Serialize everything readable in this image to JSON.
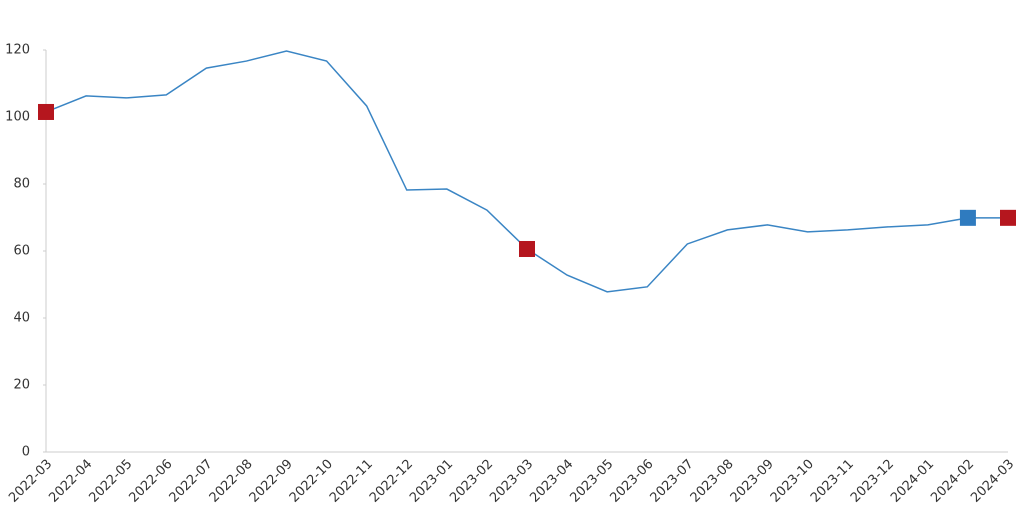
{
  "chart_data": {
    "type": "line",
    "categories": [
      "2022-03",
      "2022-04",
      "2022-05",
      "2022-06",
      "2022-07",
      "2022-08",
      "2022-09",
      "2022-10",
      "2022-11",
      "2022-12",
      "2023-01",
      "2023-02",
      "2023-03",
      "2023-04",
      "2023-05",
      "2023-06",
      "2023-07",
      "2023-08",
      "2023-09",
      "2023-10",
      "2023-11",
      "2023-12",
      "2024-01",
      "2024-02",
      "2024-03"
    ],
    "series": [
      {
        "mode": "line",
        "color": "#3a85c4",
        "values": [
          101.5,
          106.3,
          105.7,
          106.6,
          114.6,
          116.7,
          119.7,
          116.7,
          103.3,
          78.2,
          78.5,
          72.2,
          60.6,
          52.8,
          47.8,
          49.3,
          62.1,
          66.3,
          67.8,
          65.7,
          66.3,
          67.2,
          67.8,
          69.9,
          69.9
        ]
      },
      {
        "mode": "square",
        "color": "#b5161e",
        "values": [
          101.5,
          null,
          null,
          null,
          null,
          null,
          null,
          null,
          null,
          null,
          null,
          null,
          60.6,
          null,
          null,
          null,
          null,
          null,
          null,
          null,
          null,
          null,
          null,
          null,
          69.9
        ]
      },
      {
        "mode": "square",
        "color": "#2f7bbf",
        "values": [
          null,
          null,
          null,
          null,
          null,
          null,
          null,
          null,
          null,
          null,
          null,
          null,
          null,
          null,
          null,
          null,
          null,
          null,
          null,
          null,
          null,
          null,
          null,
          69.9,
          null
        ]
      }
    ],
    "ylim": [
      0,
      120
    ],
    "yticks": [
      0,
      20,
      40,
      60,
      80,
      100,
      120
    ],
    "grid": false
  }
}
